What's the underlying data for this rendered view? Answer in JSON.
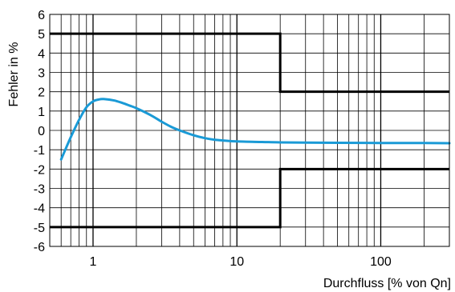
{
  "chart_data": {
    "type": "line",
    "title": "",
    "xlabel": "Durchfluss [% von Qn]",
    "ylabel": "Fehler in %",
    "x_scale": "log",
    "xlim": [
      0.5,
      300
    ],
    "ylim": [
      -6,
      6
    ],
    "grid": true,
    "legend": "none",
    "x_ticks": [
      {
        "value": 1,
        "label": "1"
      },
      {
        "value": 10,
        "label": "10"
      },
      {
        "value": 100,
        "label": "100"
      }
    ],
    "y_ticks": [
      {
        "value": 6,
        "label": "6"
      },
      {
        "value": 5,
        "label": "5"
      },
      {
        "value": 4,
        "label": "4"
      },
      {
        "value": 3,
        "label": "3"
      },
      {
        "value": 2,
        "label": "2"
      },
      {
        "value": 1,
        "label": "1"
      },
      {
        "value": 0,
        "label": "0"
      },
      {
        "value": -1,
        "label": "-1"
      },
      {
        "value": -2,
        "label": "-2"
      },
      {
        "value": -3,
        "label": "-3"
      },
      {
        "value": -4,
        "label": "-4"
      },
      {
        "value": -5,
        "label": "-5"
      },
      {
        "value": -6,
        "label": "-6"
      }
    ],
    "series": [
      {
        "color": "#1a9ad6",
        "style": "curve",
        "x": [
          0.6,
          0.65,
          0.7,
          0.8,
          0.9,
          1.0,
          1.1,
          1.2,
          1.4,
          1.6,
          1.8,
          2.0,
          2.5,
          3.0,
          3.5,
          4.0,
          5.0,
          6.0,
          7.0,
          8.0,
          10,
          15,
          20,
          30,
          50,
          100,
          200,
          300
        ],
        "y": [
          -1.5,
          -0.9,
          -0.35,
          0.55,
          1.2,
          1.5,
          1.6,
          1.62,
          1.55,
          1.42,
          1.28,
          1.15,
          0.8,
          0.45,
          0.18,
          0.0,
          -0.25,
          -0.4,
          -0.48,
          -0.52,
          -0.57,
          -0.6,
          -0.62,
          -0.63,
          -0.64,
          -0.65,
          -0.65,
          -0.66
        ]
      },
      {
        "color": "#000000",
        "style": "step",
        "x": [
          0.5,
          20,
          20,
          300
        ],
        "y": [
          5,
          5,
          2,
          2
        ]
      },
      {
        "color": "#000000",
        "style": "step",
        "x": [
          0.5,
          20,
          20,
          300
        ],
        "y": [
          -5,
          -5,
          -2,
          -2
        ]
      }
    ]
  },
  "colors": {
    "curve": "#1a9ad6",
    "limits": "#000000",
    "grid": "#000000"
  }
}
